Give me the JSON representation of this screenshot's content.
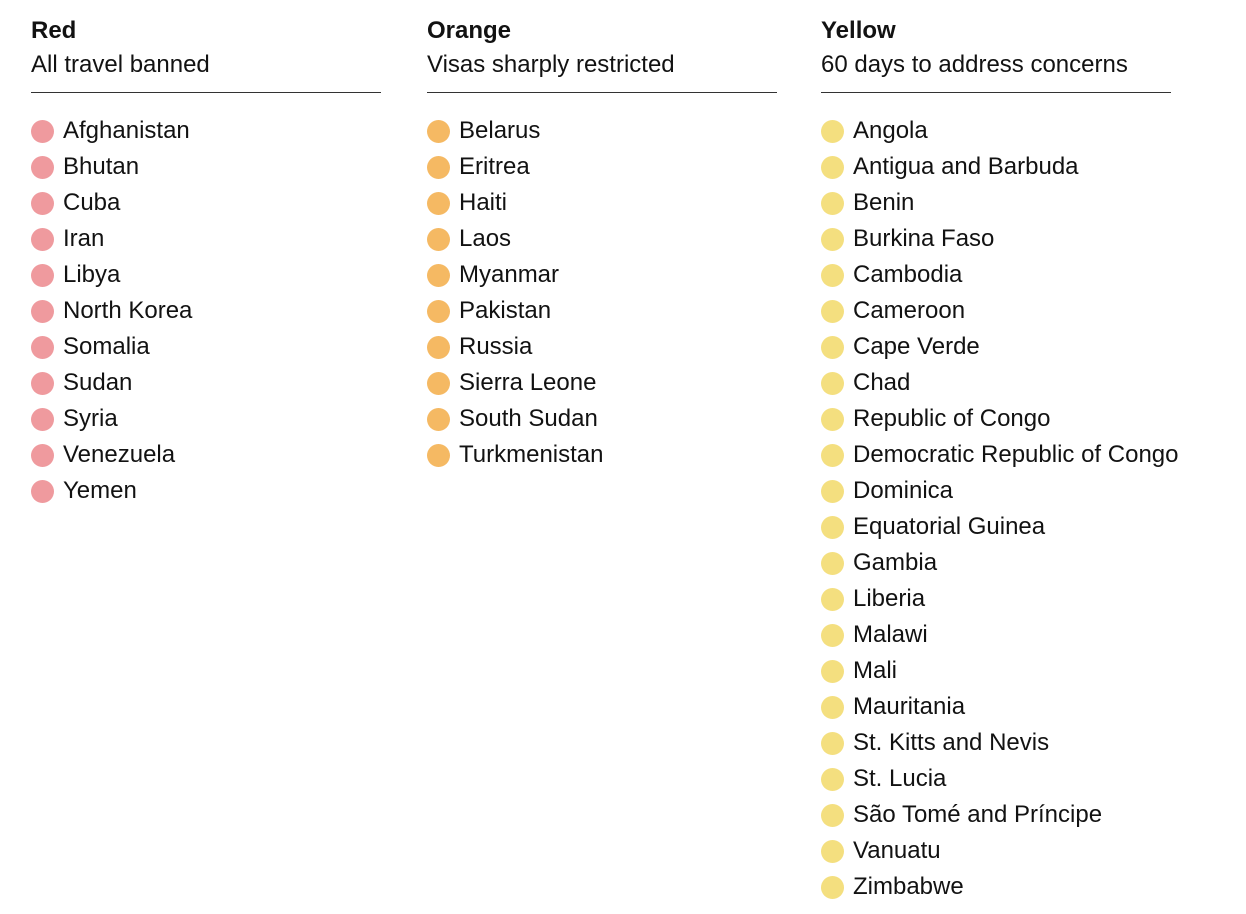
{
  "columns": [
    {
      "title": "Red",
      "subtitle": "All travel banned",
      "color": "#ef9a9e",
      "items": [
        "Afghanistan",
        "Bhutan",
        "Cuba",
        "Iran",
        "Libya",
        "North Korea",
        "Somalia",
        "Sudan",
        "Syria",
        "Venezuela",
        "Yemen"
      ]
    },
    {
      "title": "Orange",
      "subtitle": "Visas sharply restricted",
      "color": "#f5b963",
      "items": [
        "Belarus",
        "Eritrea",
        "Haiti",
        "Laos",
        "Myanmar",
        "Pakistan",
        "Russia",
        "Sierra Leone",
        "South Sudan",
        "Turkmenistan"
      ]
    },
    {
      "title": "Yellow",
      "subtitle": "60 days to address concerns",
      "color": "#f4df7f",
      "items": [
        "Angola",
        "Antigua and Barbuda",
        "Benin",
        "Burkina Faso",
        "Cambodia",
        "Cameroon",
        "Cape Verde",
        "Chad",
        "Republic of Congo",
        "Democratic Republic of Congo",
        "Dominica",
        "Equatorial Guinea",
        "Gambia",
        "Liberia",
        "Malawi",
        "Mali",
        "Mauritania",
        "St. Kitts and Nevis",
        "St. Lucia",
        "São Tomé and Príncipe",
        "Vanuatu",
        "Zimbabwe"
      ]
    }
  ]
}
